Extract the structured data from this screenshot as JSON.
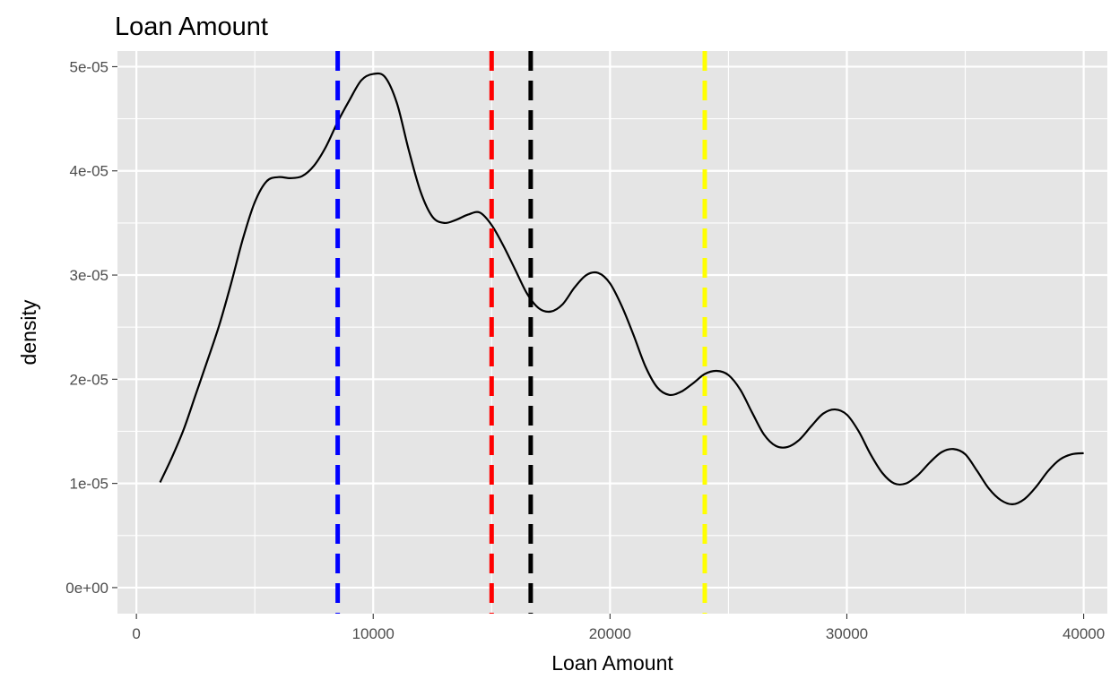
{
  "chart_data": {
    "type": "line",
    "title": "Loan Amount",
    "xlabel": "Loan Amount",
    "ylabel": "density",
    "xlim": [
      -800,
      41000
    ],
    "ylim": [
      -2.5e-06,
      5.15e-05
    ],
    "grid": true,
    "x_ticks": [
      {
        "value": 0,
        "label": "0"
      },
      {
        "value": 10000,
        "label": "10000"
      },
      {
        "value": 20000,
        "label": "20000"
      },
      {
        "value": 30000,
        "label": "30000"
      },
      {
        "value": 40000,
        "label": "40000"
      }
    ],
    "y_ticks": [
      {
        "value": 0,
        "label": "0e+00"
      },
      {
        "value": 1e-05,
        "label": "1e-05"
      },
      {
        "value": 2e-05,
        "label": "2e-05"
      },
      {
        "value": 3e-05,
        "label": "3e-05"
      },
      {
        "value": 4e-05,
        "label": "4e-05"
      },
      {
        "value": 5e-05,
        "label": "5e-05"
      }
    ],
    "series": [
      {
        "color": "#000000",
        "x": [
          1000,
          1500,
          2000,
          2500,
          3000,
          3500,
          4000,
          4500,
          5000,
          5500,
          6000,
          6500,
          7000,
          7500,
          8000,
          8500,
          9000,
          9500,
          10000,
          10500,
          11000,
          11500,
          12000,
          12500,
          13000,
          13500,
          14000,
          14500,
          15000,
          15500,
          16000,
          16500,
          17000,
          17500,
          18000,
          18500,
          19000,
          19500,
          20000,
          20500,
          21000,
          21500,
          22000,
          22500,
          23000,
          23500,
          24000,
          24500,
          25000,
          25500,
          26000,
          26500,
          27000,
          27500,
          28000,
          28500,
          29000,
          29500,
          30000,
          30500,
          31000,
          31500,
          32000,
          32500,
          33000,
          33500,
          34000,
          34500,
          35000,
          35500,
          36000,
          36500,
          37000,
          37500,
          38000,
          38500,
          39000,
          39500,
          40000
        ],
        "y": [
          1.01e-05,
          1.25e-05,
          1.52e-05,
          1.85e-05,
          2.18e-05,
          2.52e-05,
          2.92e-05,
          3.35e-05,
          3.7e-05,
          3.9e-05,
          3.94e-05,
          3.93e-05,
          3.95e-05,
          4.05e-05,
          4.23e-05,
          4.47e-05,
          4.68e-05,
          4.87e-05,
          4.93e-05,
          4.9e-05,
          4.65e-05,
          4.2e-05,
          3.8e-05,
          3.56e-05,
          3.5e-05,
          3.53e-05,
          3.58e-05,
          3.6e-05,
          3.48e-05,
          3.28e-05,
          3.05e-05,
          2.82e-05,
          2.68e-05,
          2.65e-05,
          2.72e-05,
          2.88e-05,
          3e-05,
          3.02e-05,
          2.92e-05,
          2.7e-05,
          2.42e-05,
          2.12e-05,
          1.92e-05,
          1.85e-05,
          1.88e-05,
          1.96e-05,
          2.05e-05,
          2.08e-05,
          2.04e-05,
          1.9e-05,
          1.68e-05,
          1.47e-05,
          1.36e-05,
          1.35e-05,
          1.42e-05,
          1.55e-05,
          1.67e-05,
          1.71e-05,
          1.66e-05,
          1.5e-05,
          1.28e-05,
          1.1e-05,
          1e-05,
          1e-05,
          1.08e-05,
          1.2e-05,
          1.3e-05,
          1.33e-05,
          1.28e-05,
          1.12e-05,
          9.5e-06,
          8.4e-06,
          8e-06,
          8.5e-06,
          9.7e-06,
          1.12e-05,
          1.23e-05,
          1.28e-05,
          1.29e-05
        ]
      }
    ],
    "vlines": [
      {
        "x": 8500,
        "color": "#0000ff",
        "linetype": "dashed"
      },
      {
        "x": 15000,
        "color": "#ff0000",
        "linetype": "dashed"
      },
      {
        "x": 16650,
        "color": "#000000",
        "linetype": "dashed"
      },
      {
        "x": 24000,
        "color": "#ffff00",
        "linetype": "dashed"
      }
    ],
    "colors": {
      "panel_background": "#e5e5e5",
      "grid": "#ffffff",
      "tick": "#333333"
    }
  }
}
